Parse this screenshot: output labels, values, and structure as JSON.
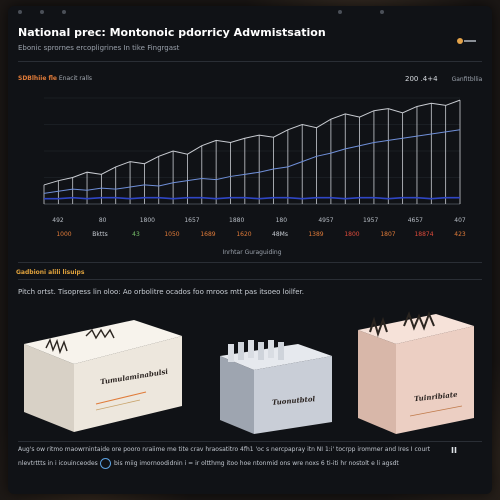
{
  "header": {
    "title": "National prec: Montonoic pdorricy Adwmistsation",
    "subtitle": "Ebonic sprornes ercopligrines In tike Fingrgast",
    "toggle_icon": "toggle-icon"
  },
  "chart": {
    "head_left_accent": "SDBlhiie fle",
    "head_left_rest": "Enacit ralls",
    "head_right_main": "200 .4+4",
    "head_right_small": "Ganfitbllia"
  },
  "chart_data": {
    "type": "line",
    "x_tick_labels": [
      "492",
      "80",
      "1800",
      "1657",
      "1880",
      "180",
      "4957",
      "1957",
      "4657",
      "407"
    ],
    "value_labels": [
      "1000",
      "Bktts",
      "43",
      "1050",
      "1689",
      "1620",
      "48Ms",
      "1389",
      "1800",
      "1807",
      "18874",
      "423"
    ],
    "value_label_colors": [
      "#e07b39",
      "#c8cdd4",
      "#79c26b",
      "#e07b39",
      "#e07b39",
      "#e07b39",
      "#c8cdd4",
      "#e07b39",
      "#e04b3b",
      "#e07b39",
      "#e04b3b",
      "#e07b39"
    ],
    "xlabel": "Inrhtar Guraguiding",
    "series": [
      {
        "name": "",
        "color": "#c9ccd2",
        "values": [
          18,
          22,
          25,
          30,
          28,
          35,
          40,
          38,
          45,
          50,
          47,
          55,
          60,
          58,
          62,
          65,
          63,
          70,
          75,
          72,
          80,
          85,
          82,
          88,
          90,
          86,
          92,
          95,
          93,
          98
        ]
      },
      {
        "name": "",
        "color": "#6f8fd8",
        "values": [
          10,
          12,
          14,
          13,
          15,
          14,
          16,
          18,
          17,
          20,
          22,
          24,
          23,
          26,
          28,
          30,
          33,
          35,
          40,
          45,
          48,
          52,
          55,
          58,
          60,
          62,
          64,
          66,
          68,
          70
        ]
      },
      {
        "name": "",
        "color": "#2f46c4",
        "values": [
          5,
          5,
          6,
          5,
          6,
          6,
          5,
          6,
          6,
          5,
          6,
          6,
          5,
          6,
          6,
          5,
          6,
          6,
          5,
          6,
          6,
          5,
          6,
          6,
          5,
          6,
          6,
          5,
          6,
          6
        ]
      }
    ],
    "ylim": [
      0,
      100
    ]
  },
  "section": {
    "title": "Gadbioni alili lisuips",
    "text": "Pitch ortst. Tisopress lin oloo: Ao orbolitre ocados foo mroos mtt pas itsoeo loilfer."
  },
  "products": [
    {
      "label": "Tumulaminabulsi",
      "color": "#f1ece4"
    },
    {
      "label": "Tuonutbtol",
      "color": "#c5cad3"
    },
    {
      "label": "Tuinribiate",
      "color": "#f0d6cb"
    }
  ],
  "footer": {
    "line1": "Aug's ow ritmo maowrnintaide ore pooro nraiime me tite crav hraosatitro 4fh1 'oc s nercpapray itn NI 1:i' tocrpp irommer and Ires I court",
    "line2": "nlevtrttts in i icouinceodes",
    "line2b": "bis miig imornoodidnin i = ir oltthmg itoo hoe ntonmid ons wre noxs 6 ti-iti hr nostolt e li agsdt",
    "mark": "II"
  }
}
